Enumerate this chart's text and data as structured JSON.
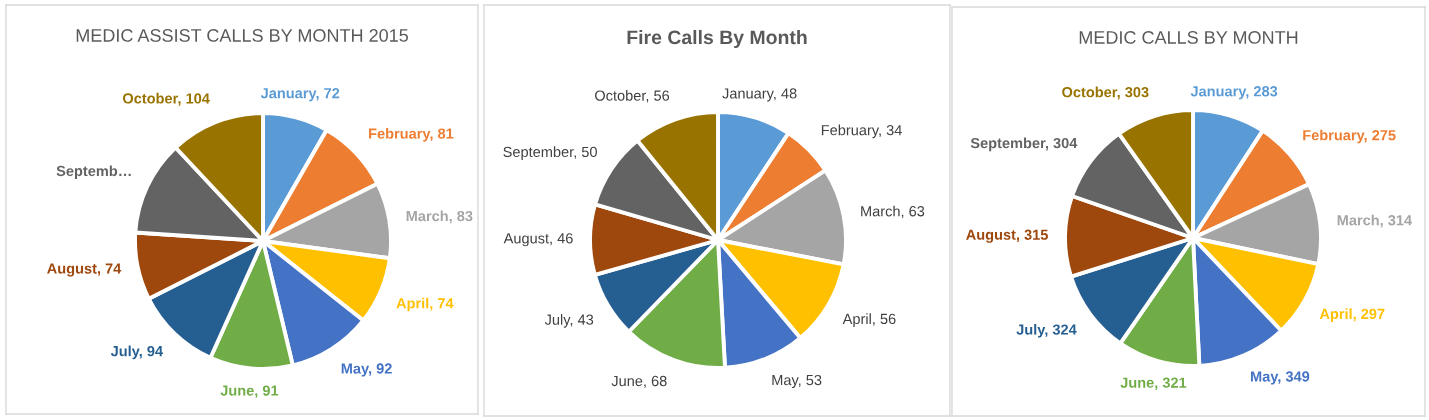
{
  "chart_data": [
    {
      "type": "pie",
      "title": "MEDIC ASSIST CALLS BY MONTH 2015",
      "categories": [
        "January",
        "February",
        "March",
        "April",
        "May",
        "June",
        "July",
        "August",
        "Septemb…",
        "October"
      ],
      "values": [
        72,
        81,
        83,
        74,
        92,
        91,
        94,
        74,
        104,
        104
      ],
      "colors": [
        "#5b9bd5",
        "#ed7d31",
        "#a5a5a5",
        "#ffc000",
        "#4472c4",
        "#70ad47",
        "#255e91",
        "#9e480e",
        "#636363",
        "#997300"
      ],
      "value_labels": [
        "72",
        "81",
        "83",
        "74",
        "92",
        "91",
        "94",
        "74",
        null,
        "104"
      ]
    },
    {
      "type": "pie",
      "title": "Fire Calls By Month",
      "categories": [
        "January",
        "February",
        "March",
        "April",
        "May",
        "June",
        "July",
        "August",
        "September",
        "October"
      ],
      "values": [
        48,
        34,
        63,
        56,
        53,
        68,
        43,
        46,
        50,
        56
      ],
      "colors": [
        "#5b9bd5",
        "#ed7d31",
        "#a5a5a5",
        "#ffc000",
        "#4472c4",
        "#70ad47",
        "#255e91",
        "#9e480e",
        "#636363",
        "#997300"
      ],
      "value_labels": [
        "48",
        "34",
        "63",
        "56",
        "53",
        "68",
        "43",
        "46",
        "50",
        "56"
      ]
    },
    {
      "type": "pie",
      "title": "MEDIC CALLS BY MONTH",
      "categories": [
        "January",
        "February",
        "March",
        "April",
        "May",
        "June",
        "July",
        "August",
        "September",
        "October"
      ],
      "values": [
        283,
        275,
        314,
        297,
        349,
        321,
        324,
        315,
        304,
        303
      ],
      "colors": [
        "#5b9bd5",
        "#ed7d31",
        "#a5a5a5",
        "#ffc000",
        "#4472c4",
        "#70ad47",
        "#255e91",
        "#9e480e",
        "#636363",
        "#997300"
      ],
      "value_labels": [
        "283",
        "275",
        "314",
        "297",
        "349",
        "321",
        "324",
        "315",
        "304",
        "303"
      ]
    }
  ]
}
